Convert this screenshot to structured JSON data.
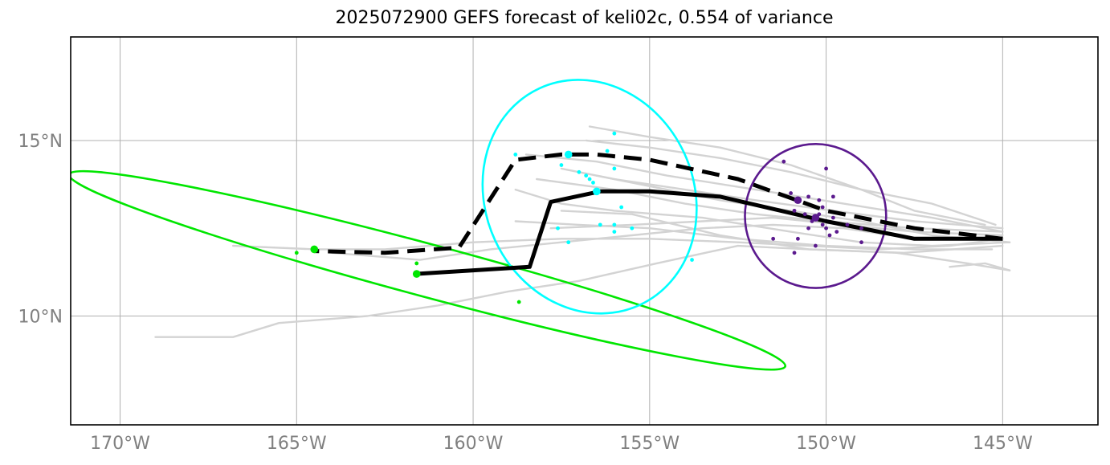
{
  "chart_data": {
    "type": "line",
    "title": "2025072900 GEFS forecast of keli02c, 0.554 of variance",
    "xlim": [
      -171.4,
      -142.3
    ],
    "ylim": [
      6.9,
      17.95
    ],
    "grid": true,
    "x_ticks": [
      {
        "value": -170,
        "label": "170°W"
      },
      {
        "value": -165,
        "label": "165°W"
      },
      {
        "value": -160,
        "label": "160°W"
      },
      {
        "value": -155,
        "label": "155°W"
      },
      {
        "value": -150,
        "label": "150°W"
      },
      {
        "value": -145,
        "label": "145°W"
      }
    ],
    "y_ticks": [
      {
        "value": 10,
        "label": "10°N"
      },
      {
        "value": 15,
        "label": "15°N"
      }
    ],
    "colors": {
      "ensemble": "#d3d3d3",
      "mean_track": "#000000",
      "group_green": "#00e600",
      "group_cyan": "#00ffff",
      "group_purple": "#5b1a8e",
      "grid": "#b0b0b0",
      "tick_label": "#808080"
    },
    "ensemble_tracks": [
      [
        [
          -145.0,
          12.2
        ],
        [
          -146.5,
          12.0
        ],
        [
          -148.5,
          11.9
        ],
        [
          -150.5,
          12.0
        ],
        [
          -152.5,
          12.1
        ],
        [
          -155.0,
          12.2
        ],
        [
          -157.5,
          12.2
        ],
        [
          -160.0,
          12.1
        ],
        [
          -162.5,
          11.9
        ],
        [
          -164.5,
          11.9
        ],
        [
          -166.8,
          12.0
        ]
      ],
      [
        [
          -144.8,
          12.1
        ],
        [
          -147.0,
          12.0
        ],
        [
          -149.0,
          12.1
        ],
        [
          -151.0,
          12.4
        ],
        [
          -153.5,
          12.8
        ],
        [
          -156.0,
          13.0
        ],
        [
          -157.5,
          13.2
        ],
        [
          -158.8,
          13.6
        ]
      ],
      [
        [
          -145.0,
          12.3
        ],
        [
          -147.5,
          12.4
        ],
        [
          -149.5,
          12.6
        ],
        [
          -151.5,
          12.8
        ],
        [
          -153.5,
          12.7
        ],
        [
          -155.5,
          12.6
        ],
        [
          -157.8,
          12.5
        ]
      ],
      [
        [
          -145.0,
          12.5
        ],
        [
          -147.5,
          12.7
        ],
        [
          -149.8,
          13.0
        ],
        [
          -152.0,
          13.3
        ],
        [
          -154.0,
          13.6
        ],
        [
          -156.0,
          13.9
        ],
        [
          -157.5,
          14.2
        ]
      ],
      [
        [
          -145.2,
          12.6
        ],
        [
          -147.0,
          13.2
        ],
        [
          -149.0,
          13.6
        ],
        [
          -151.0,
          14.1
        ],
        [
          -153.0,
          14.5
        ],
        [
          -155.0,
          14.8
        ],
        [
          -156.8,
          15.0
        ]
      ],
      [
        [
          -145.5,
          12.6
        ],
        [
          -147.5,
          13.0
        ],
        [
          -149.0,
          13.6
        ],
        [
          -151.0,
          14.3
        ],
        [
          -153.0,
          14.8
        ],
        [
          -155.0,
          15.1
        ],
        [
          -156.7,
          15.4
        ]
      ],
      [
        [
          -145.0,
          12.4
        ],
        [
          -147.0,
          12.8
        ],
        [
          -149.5,
          13.2
        ],
        [
          -152.0,
          13.6
        ],
        [
          -154.5,
          14.0
        ],
        [
          -156.5,
          14.4
        ],
        [
          -158.5,
          14.6
        ]
      ],
      [
        [
          -145.3,
          11.9
        ],
        [
          -147.5,
          11.9
        ],
        [
          -150.0,
          12.0
        ],
        [
          -152.5,
          12.2
        ],
        [
          -155.0,
          12.5
        ],
        [
          -157.0,
          12.6
        ],
        [
          -158.8,
          12.7
        ]
      ],
      [
        [
          -145.0,
          12.0
        ],
        [
          -147.8,
          11.8
        ],
        [
          -150.5,
          11.9
        ],
        [
          -153.0,
          12.3
        ],
        [
          -155.5,
          12.9
        ],
        [
          -157.5,
          13.0
        ]
      ],
      [
        [
          -144.8,
          11.3
        ],
        [
          -146.0,
          11.5
        ],
        [
          -148.0,
          11.8
        ],
        [
          -150.5,
          11.9
        ],
        [
          -152.5,
          12.0
        ],
        [
          -154.8,
          11.5
        ],
        [
          -157.0,
          11.0
        ],
        [
          -159.0,
          10.7
        ],
        [
          -161.0,
          10.3
        ],
        [
          -163.0,
          10.0
        ],
        [
          -165.5,
          9.8
        ],
        [
          -166.8,
          9.4
        ],
        [
          -169.0,
          9.4
        ]
      ],
      [
        [
          -146.5,
          11.4
        ],
        [
          -145.5,
          11.5
        ],
        [
          -144.8,
          11.3
        ]
      ],
      [
        [
          -145.0,
          12.2
        ],
        [
          -147.5,
          12.2
        ],
        [
          -149.5,
          12.5
        ],
        [
          -151.5,
          12.6
        ],
        [
          -153.5,
          12.5
        ],
        [
          -155.5,
          12.3
        ],
        [
          -157.5,
          12.1
        ],
        [
          -159.5,
          11.9
        ],
        [
          -161.5,
          11.6
        ],
        [
          -164.0,
          11.8
        ]
      ],
      [
        [
          -145.0,
          12.4
        ],
        [
          -147.5,
          12.5
        ],
        [
          -150.0,
          12.7
        ],
        [
          -152.0,
          12.9
        ],
        [
          -154.0,
          13.2
        ],
        [
          -156.0,
          13.6
        ],
        [
          -158.2,
          13.9
        ]
      ],
      [
        [
          -144.8,
          12.1
        ],
        [
          -147.0,
          12.3
        ],
        [
          -149.0,
          12.7
        ],
        [
          -151.0,
          13.0
        ],
        [
          -153.0,
          13.3
        ],
        [
          -155.0,
          13.7
        ],
        [
          -156.5,
          14.0
        ]
      ]
    ],
    "mean_track_solid": [
      [
        -145.0,
        12.2
      ],
      [
        -147.5,
        12.2
      ],
      [
        -150.0,
        12.7
      ],
      [
        -153.0,
        13.4
      ],
      [
        -155.0,
        13.55
      ],
      [
        -156.4,
        13.55
      ],
      [
        -157.8,
        13.25
      ],
      [
        -158.4,
        11.4
      ],
      [
        -161.6,
        11.2
      ]
    ],
    "mean_track_dashed": [
      [
        -145.0,
        12.2
      ],
      [
        -147.5,
        12.5
      ],
      [
        -150.0,
        13.0
      ],
      [
        -152.5,
        13.9
      ],
      [
        -155.0,
        14.45
      ],
      [
        -156.5,
        14.6
      ],
      [
        -157.5,
        14.6
      ],
      [
        -158.8,
        14.45
      ],
      [
        -160.4,
        11.95
      ],
      [
        -162.5,
        11.8
      ],
      [
        -164.5,
        11.85
      ]
    ],
    "groups": [
      {
        "color_key": "group_green",
        "center": [
          -161.6,
          11.2
        ],
        "center2": [
          -164.5,
          11.9
        ],
        "ellipse": {
          "cx": -161.3,
          "cy": 11.3,
          "rx_deg": 10.5,
          "ry_deg": 0.75,
          "angle_deg": 15
        },
        "points": [
          [
            -165.0,
            11.8
          ],
          [
            -161.6,
            11.5
          ],
          [
            -158.7,
            10.4
          ]
        ]
      },
      {
        "color_key": "group_cyan",
        "center": [
          -156.5,
          13.55
        ],
        "center2": [
          -157.3,
          14.6
        ],
        "ellipse": {
          "cx": -156.7,
          "cy": 13.4,
          "rx_deg": 2.95,
          "ry_deg": 3.4,
          "angle_deg": -25
        },
        "points": [
          [
            -158.8,
            14.6
          ],
          [
            -157.5,
            14.3
          ],
          [
            -157.0,
            14.1
          ],
          [
            -156.8,
            14.0
          ],
          [
            -156.7,
            13.9
          ],
          [
            -156.0,
            14.2
          ],
          [
            -156.0,
            15.2
          ],
          [
            -156.2,
            14.7
          ],
          [
            -156.6,
            13.8
          ],
          [
            -156.4,
            12.6
          ],
          [
            -156.0,
            12.6
          ],
          [
            -155.5,
            12.5
          ],
          [
            -156.0,
            12.4
          ],
          [
            -155.8,
            13.1
          ],
          [
            -157.3,
            12.1
          ],
          [
            -157.6,
            12.5
          ],
          [
            -153.8,
            11.6
          ]
        ]
      },
      {
        "color_key": "group_purple",
        "center": [
          -150.3,
          12.8
        ],
        "center2": [
          -150.8,
          13.3
        ],
        "ellipse": {
          "cx": -150.3,
          "cy": 12.85,
          "rx_deg": 2.0,
          "ry_deg": 2.05,
          "angle_deg": 0
        },
        "points": [
          [
            -151.2,
            14.4
          ],
          [
            -150.0,
            14.2
          ],
          [
            -151.0,
            13.5
          ],
          [
            -150.5,
            13.4
          ],
          [
            -150.2,
            13.3
          ],
          [
            -149.8,
            13.4
          ],
          [
            -150.1,
            13.1
          ],
          [
            -150.9,
            13.0
          ],
          [
            -150.6,
            12.9
          ],
          [
            -150.2,
            12.9
          ],
          [
            -149.8,
            12.8
          ],
          [
            -150.4,
            12.7
          ],
          [
            -150.1,
            12.6
          ],
          [
            -150.5,
            12.5
          ],
          [
            -150.0,
            12.5
          ],
          [
            -149.7,
            12.4
          ],
          [
            -149.0,
            12.5
          ],
          [
            -150.8,
            12.2
          ],
          [
            -151.5,
            12.2
          ],
          [
            -150.3,
            12.0
          ],
          [
            -149.0,
            12.1
          ],
          [
            -150.9,
            11.8
          ],
          [
            -149.4,
            12.6
          ],
          [
            -149.9,
            12.3
          ]
        ]
      }
    ]
  }
}
